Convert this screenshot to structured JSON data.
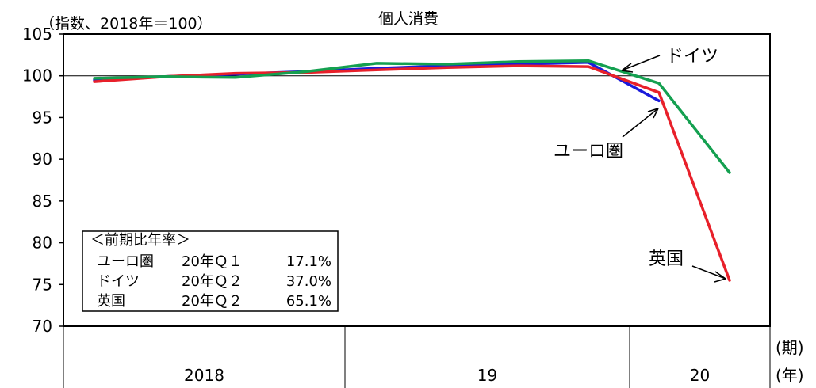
{
  "chart_data": {
    "type": "line",
    "title": "個人消費",
    "ylabel": "（指数、2018年＝100）",
    "x_unit_period": "(期)",
    "x_unit_year": "(年)",
    "years": [
      {
        "label": "2018",
        "quarters": 4
      },
      {
        "label": "19",
        "quarters": 4
      },
      {
        "label": "20",
        "quarters": 2
      }
    ],
    "x": [
      "2018Q1",
      "2018Q2",
      "2018Q3",
      "2018Q4",
      "2019Q1",
      "2019Q2",
      "2019Q3",
      "2019Q4",
      "2020Q1",
      "2020Q2"
    ],
    "ylim": [
      70,
      105
    ],
    "yticks": [
      70,
      75,
      80,
      85,
      90,
      95,
      100,
      105
    ],
    "reference_line": 100,
    "series": [
      {
        "name": "ユーロ圏",
        "color": "#1a1adb",
        "values": [
          99.5,
          99.9,
          100.2,
          100.5,
          100.9,
          101.2,
          101.4,
          101.6,
          97.0,
          null
        ]
      },
      {
        "name": "英国",
        "color": "#e8202a",
        "values": [
          99.3,
          99.9,
          100.3,
          100.4,
          100.7,
          101.0,
          101.2,
          101.1,
          98.0,
          75.5
        ]
      },
      {
        "name": "ドイツ",
        "color": "#14a050",
        "values": [
          99.7,
          99.9,
          99.8,
          100.5,
          101.5,
          101.4,
          101.7,
          101.8,
          99.1,
          88.4
        ]
      }
    ],
    "annotations": [
      {
        "text": "ドイツ",
        "series": "ドイツ"
      },
      {
        "text": "ユーロ圏",
        "series": "ユーロ圏"
      },
      {
        "text": "英国",
        "series": "英国"
      }
    ],
    "inset_table": {
      "title": "＜前期比年率＞",
      "rows": [
        {
          "name": "ユーロ圏",
          "period": "20年Ｑ１",
          "value": "17.1%"
        },
        {
          "name": "ドイツ",
          "period": "20年Ｑ２",
          "value": "37.0%"
        },
        {
          "name": "英国",
          "period": "20年Ｑ２",
          "value": "65.1%"
        }
      ]
    },
    "legend": "none",
    "grid": false
  }
}
